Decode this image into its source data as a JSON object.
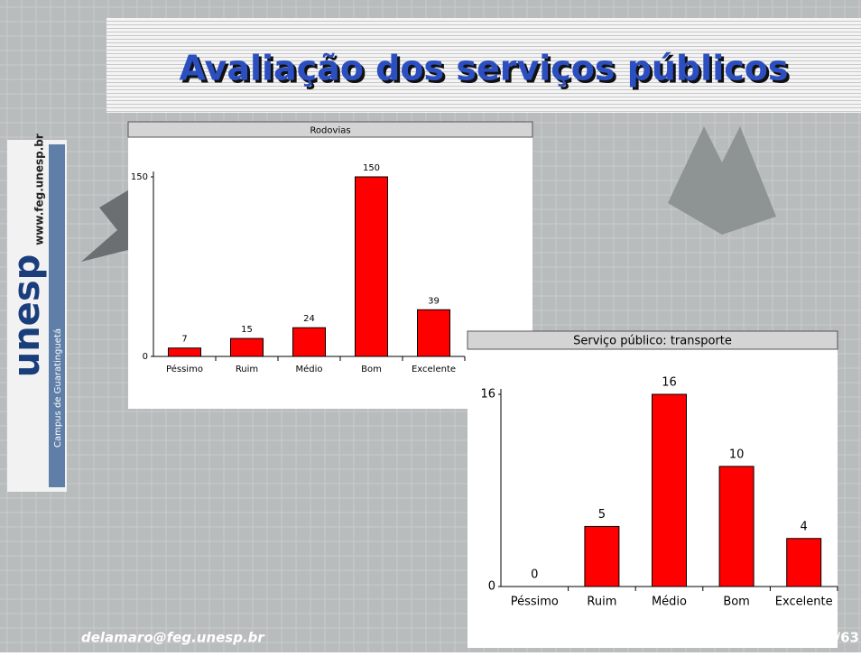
{
  "slide": {
    "title": "Avaliação dos serviços públicos",
    "footer": "delamaro@feg.unesp.br",
    "page": "/63",
    "logo": {
      "name": "unesp",
      "url": "www.feg.unesp.br",
      "campus": "Campus de Guaratinguetá"
    }
  },
  "chart_data": [
    {
      "type": "bar",
      "title": "Rodovias",
      "categories": [
        "Péssimo",
        "Ruim",
        "Médio",
        "Bom",
        "Excelente"
      ],
      "values": [
        7,
        15,
        24,
        150,
        39
      ],
      "color": "#ff0000",
      "ylim": [
        0,
        150
      ],
      "yticks": [
        0,
        150
      ]
    },
    {
      "type": "bar",
      "title": "Serviço público: transporte",
      "categories": [
        "Péssimo",
        "Ruim",
        "Médio",
        "Bom",
        "Excelente"
      ],
      "values": [
        0,
        5,
        16,
        10,
        4
      ],
      "color": "#ff0000",
      "ylim": [
        0,
        16
      ],
      "yticks": [
        0,
        16
      ]
    }
  ]
}
